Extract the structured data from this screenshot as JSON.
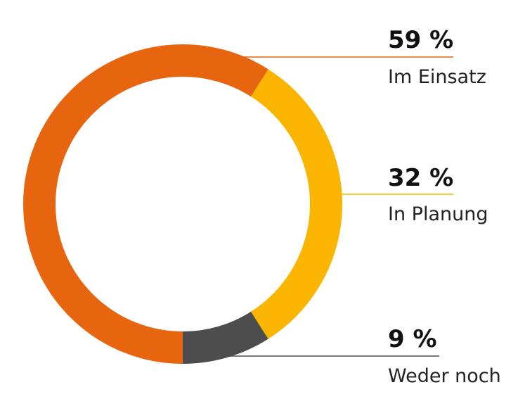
{
  "chart_data": {
    "type": "pie",
    "variant": "donut",
    "title": "",
    "categories": [
      "Im Einsatz",
      "In Planung",
      "Weder noch"
    ],
    "values": [
      59,
      32,
      9
    ],
    "value_labels": [
      "59 %",
      "32 %",
      "9 %"
    ],
    "colors": [
      "#E8650F",
      "#F9B500",
      "#4D4D4D"
    ],
    "start_angle_deg": 180,
    "direction": "clockwise",
    "legend": "right"
  }
}
